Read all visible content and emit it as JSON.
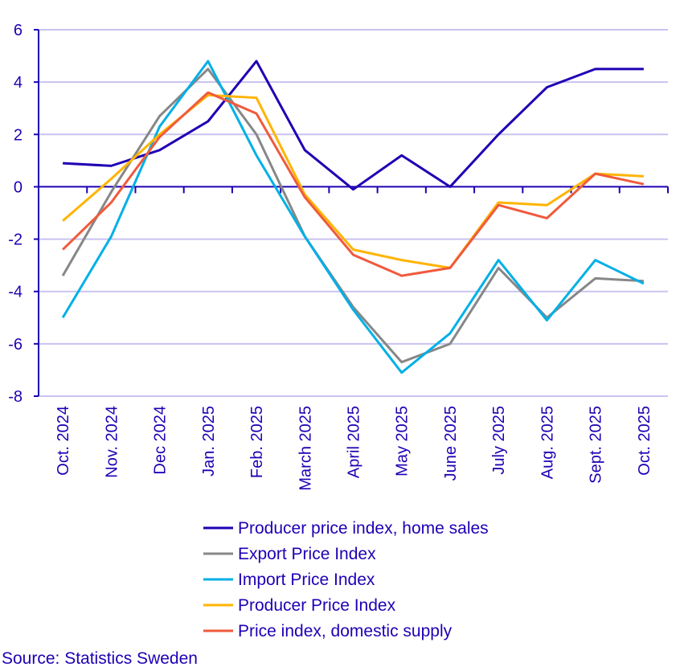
{
  "chart_data": {
    "type": "line",
    "categories": [
      "Oct. 2024",
      "Nov. 2024",
      "Dec 2024",
      "Jan. 2025",
      "Feb. 2025",
      "March 2025",
      "April 2025",
      "May 2025",
      "June 2025",
      "July 2025",
      "Aug. 2025",
      "Sept. 2025",
      "Oct. 2025"
    ],
    "ylim": [
      -8,
      6
    ],
    "yticks": [
      -8,
      -6,
      -4,
      -2,
      0,
      2,
      4,
      6
    ],
    "grid": true,
    "legend_position": "bottom",
    "series": [
      {
        "name": "Producer price index, home sales",
        "color": "#1e00b4",
        "values": [
          0.9,
          0.8,
          1.4,
          2.5,
          4.8,
          1.4,
          -0.1,
          1.2,
          0.0,
          2.0,
          3.8,
          4.5,
          4.5
        ]
      },
      {
        "name": "Export Price Index",
        "color": "#878787",
        "values": [
          -3.4,
          -0.2,
          2.7,
          4.5,
          2.0,
          -1.9,
          -4.6,
          -6.7,
          -6.0,
          -3.1,
          -5.0,
          -3.5,
          -3.6
        ]
      },
      {
        "name": "Import Price Index",
        "color": "#00b0e6",
        "values": [
          -5.0,
          -1.9,
          2.3,
          4.8,
          1.2,
          -1.9,
          -4.7,
          -7.1,
          -5.6,
          -2.8,
          -5.1,
          -2.8,
          -3.7
        ]
      },
      {
        "name": "Producer Price Index",
        "color": "#ffb400",
        "values": [
          -1.3,
          0.3,
          2.0,
          3.5,
          3.4,
          -0.3,
          -2.4,
          -2.8,
          -3.1,
          -0.6,
          -0.7,
          0.5,
          0.4
        ]
      },
      {
        "name": "Price index, domestic supply",
        "color": "#f05a3c",
        "values": [
          -2.4,
          -0.6,
          1.9,
          3.6,
          2.8,
          -0.4,
          -2.6,
          -3.4,
          -3.1,
          -0.7,
          -1.2,
          0.5,
          0.1
        ]
      }
    ],
    "axis_color": "#1e00b4",
    "grid_color": "#c8c3f0"
  },
  "source": "Source: Statistics Sweden"
}
